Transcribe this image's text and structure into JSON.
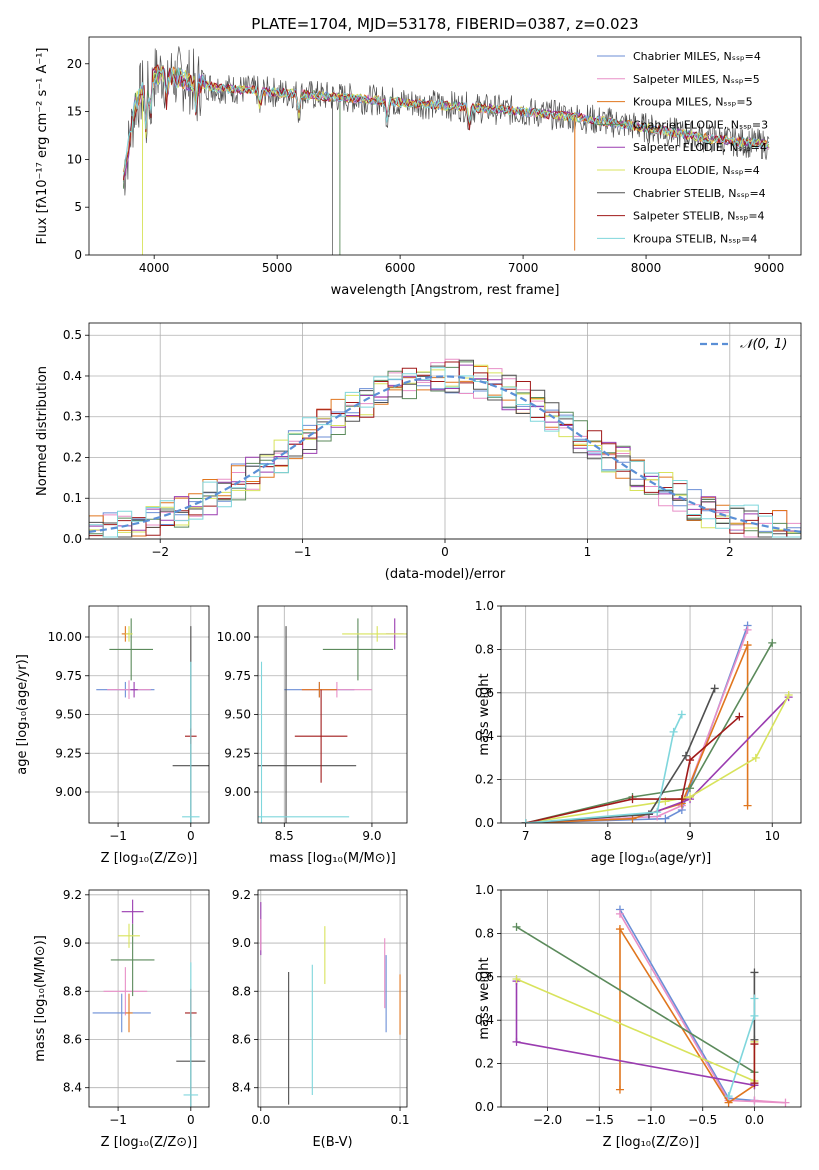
{
  "figure_title": "PLATE=1704, MJD=53178, FIBERID=0387, z=0.023",
  "colors": [
    "#6b8ed6",
    "#e88fc7",
    "#e0761e",
    "#5b8a5b",
    "#9a3cb0",
    "#d8e35c",
    "#505050",
    "#a01a1a",
    "#7fd6dc"
  ],
  "legend": [
    "Chabrier MILES, Nₛₛₚ=4",
    "Salpeter MILES, Nₛₛₚ=5",
    "Kroupa MILES, Nₛₛₚ=5",
    "Chabrier ELODIE, Nₛₛₚ=3",
    "Salpeter ELODIE, Nₛₛₚ=4",
    "Kroupa ELODIE, Nₛₛₚ=4",
    "Chabrier STELIB, Nₛₛₚ=4",
    "Salpeter STELIB, Nₛₛₚ=4",
    "Kroupa STELIB, Nₛₛₚ=4"
  ],
  "chart_data": [
    {
      "id": "spectrum",
      "type": "line",
      "xlabel": "wavelength [Angstrom, rest frame]",
      "ylabel": "Flux [fλ10⁻¹⁷ erg cm⁻² s⁻¹ A⁻¹]",
      "xlim": [
        3470,
        9260
      ],
      "ylim": [
        0,
        22.8
      ],
      "xticks": [
        4000,
        5000,
        6000,
        7000,
        8000,
        9000
      ],
      "yticks": [
        0,
        5,
        10,
        15,
        20
      ],
      "continuum": {
        "x": [
          3750,
          3850,
          3950,
          4050,
          4200,
          4500,
          5000,
          5500,
          6000,
          6500,
          7000,
          7500,
          8000,
          8500,
          9000
        ],
        "y": [
          8,
          16,
          18,
          19,
          18.5,
          17.5,
          17,
          16.5,
          16,
          15.5,
          15,
          14.3,
          13.3,
          12.2,
          11.5
        ]
      },
      "series_names_from_legend": true
    },
    {
      "id": "residual-histogram",
      "type": "line",
      "xlabel": "(data-model)/error",
      "ylabel": "Normed distribution",
      "xlim": [
        -2.5,
        2.5
      ],
      "ylim": [
        0,
        0.53
      ],
      "xticks": [
        -2,
        -1,
        0,
        1,
        2
      ],
      "yticks": [
        0.0,
        0.1,
        0.2,
        0.3,
        0.4,
        0.5
      ],
      "reference_curve": "𝒩(0, 1)",
      "bin_width": 0.1
    },
    {
      "id": "age-vs-Z",
      "type": "scatter",
      "xlabel": "Z [log₁₀(Z/Z⊙)]",
      "ylabel": "age  [log₁₀(age/yr)]",
      "xlim": [
        -1.4,
        0.25
      ],
      "ylim": [
        8.8,
        10.2
      ],
      "xticks": [
        -1,
        0
      ],
      "yticks": [
        9.0,
        9.25,
        9.5,
        9.75,
        10.0
      ],
      "points": [
        {
          "x": -0.9,
          "y": 9.66,
          "xerr": 0.4,
          "yerr": 0.05
        },
        {
          "x": -0.85,
          "y": 9.66,
          "xerr": 0.3,
          "yerr": 0.06
        },
        {
          "x": -0.9,
          "y": 10.02,
          "xerr": 0.05,
          "yerr": 0.05
        },
        {
          "x": -0.82,
          "y": 9.92,
          "xerr": 0.3,
          "yerr": 0.2
        },
        {
          "x": -0.78,
          "y": 9.66,
          "xerr": 0.05,
          "yerr": 0.05
        },
        {
          "x": -0.85,
          "y": 10.02,
          "xerr": 0.05,
          "yerr": 0.05
        },
        {
          "x": 0.0,
          "y": 9.17,
          "xerr": 0.25,
          "yerr": 0.9
        },
        {
          "x": 0.0,
          "y": 9.36,
          "xerr": 0.08,
          "yerr": 0.05
        },
        {
          "x": 0.0,
          "y": 8.84,
          "xerr": 0.12,
          "yerr": 1.0
        }
      ]
    },
    {
      "id": "age-vs-mass",
      "type": "scatter",
      "xlabel": "mass [log₁₀(M/M⊙)]",
      "ylabel": "",
      "xlim": [
        8.35,
        9.2
      ],
      "ylim": [
        8.8,
        10.2
      ],
      "xticks": [
        8.5,
        9.0
      ],
      "yticks": [
        9.0,
        9.25,
        9.5,
        9.75,
        10.0
      ],
      "points": [
        {
          "x": 8.7,
          "y": 9.66,
          "xerr": 0.2,
          "yerr": 0.05
        },
        {
          "x": 8.8,
          "y": 9.66,
          "xerr": 0.2,
          "yerr": 0.05
        },
        {
          "x": 8.7,
          "y": 9.66,
          "xerr": 0.1,
          "yerr": 0.05
        },
        {
          "x": 8.92,
          "y": 9.92,
          "xerr": 0.2,
          "yerr": 0.2
        },
        {
          "x": 9.13,
          "y": 10.02,
          "xerr": 0.05,
          "yerr": 0.1
        },
        {
          "x": 9.03,
          "y": 10.02,
          "xerr": 0.2,
          "yerr": 0.05
        },
        {
          "x": 8.51,
          "y": 9.17,
          "xerr": 0.4,
          "yerr": 0.9
        },
        {
          "x": 8.71,
          "y": 9.36,
          "xerr": 0.15,
          "yerr": 0.3
        },
        {
          "x": 8.37,
          "y": 8.84,
          "xerr": 0.5,
          "yerr": 1.0
        }
      ]
    },
    {
      "id": "mass-weight-vs-age",
      "type": "line",
      "xlabel": "age  [log₁₀(age/yr)]",
      "ylabel": "mass weight",
      "xlim": [
        6.7,
        10.35
      ],
      "ylim": [
        0,
        1.0
      ],
      "xticks": [
        7,
        8,
        9,
        10
      ],
      "yticks": [
        0.0,
        0.2,
        0.4,
        0.6,
        0.8,
        1.0
      ],
      "series": [
        {
          "x": [
            7.0,
            8.7,
            8.9,
            9.7
          ],
          "y": [
            0.0,
            0.02,
            0.06,
            0.91
          ]
        },
        {
          "x": [
            7.0,
            8.6,
            8.9,
            9.7
          ],
          "y": [
            0.0,
            0.03,
            0.08,
            0.89
          ]
        },
        {
          "x": [
            7.0,
            8.3,
            8.9,
            9.7,
            9.7
          ],
          "y": [
            0.0,
            0.02,
            0.09,
            0.82,
            0.08
          ]
        },
        {
          "x": [
            7.0,
            8.3,
            9.0,
            10.0
          ],
          "y": [
            0.0,
            0.12,
            0.16,
            0.83
          ]
        },
        {
          "x": [
            7.0,
            8.5,
            9.0,
            10.2
          ],
          "y": [
            0.0,
            0.04,
            0.11,
            0.58
          ]
        },
        {
          "x": [
            7.0,
            8.7,
            9.0,
            9.8,
            10.2
          ],
          "y": [
            0.0,
            0.1,
            0.12,
            0.3,
            0.59
          ]
        },
        {
          "x": [
            7.0,
            8.5,
            8.95,
            9.3
          ],
          "y": [
            0.0,
            0.04,
            0.31,
            0.62
          ]
        },
        {
          "x": [
            7.0,
            8.3,
            8.9,
            9.0,
            9.6
          ],
          "y": [
            0.0,
            0.11,
            0.11,
            0.29,
            0.49
          ]
        },
        {
          "x": [
            7.0,
            8.6,
            8.8,
            8.9
          ],
          "y": [
            0.0,
            0.05,
            0.42,
            0.5
          ]
        }
      ]
    },
    {
      "id": "mass-vs-Z",
      "type": "scatter",
      "xlabel": "Z [log₁₀(Z/Z⊙)]",
      "ylabel": "mass [log₁₀(M/M⊙)]",
      "xlim": [
        -1.4,
        0.25
      ],
      "ylim": [
        8.32,
        9.22
      ],
      "xticks": [
        -1,
        0
      ],
      "yticks": [
        8.4,
        8.6,
        8.8,
        9.0,
        9.2
      ],
      "points": [
        {
          "x": -0.95,
          "y": 8.71,
          "xerr": 0.4,
          "yerr": 0.08
        },
        {
          "x": -0.9,
          "y": 8.8,
          "xerr": 0.3,
          "yerr": 0.1
        },
        {
          "x": -0.85,
          "y": 8.71,
          "xerr": 0.05,
          "yerr": 0.08
        },
        {
          "x": -0.8,
          "y": 8.93,
          "xerr": 0.3,
          "yerr": 0.15
        },
        {
          "x": -0.8,
          "y": 9.13,
          "xerr": 0.15,
          "yerr": 0.05
        },
        {
          "x": -0.85,
          "y": 9.03,
          "xerr": 0.15,
          "yerr": 0.05
        },
        {
          "x": 0.0,
          "y": 8.51,
          "xerr": 0.2,
          "yerr": 0.2
        },
        {
          "x": 0.0,
          "y": 8.71,
          "xerr": 0.08,
          "yerr": 0.1
        },
        {
          "x": 0.0,
          "y": 8.37,
          "xerr": 0.1,
          "yerr": 0.55
        }
      ]
    },
    {
      "id": "mass-vs-ebv",
      "type": "scatter",
      "xlabel": "E(B-V)",
      "ylabel": "",
      "xlim": [
        -0.002,
        0.105
      ],
      "ylim": [
        8.32,
        9.22
      ],
      "xticks": [
        0.0,
        0.1
      ],
      "yticks": [
        8.4,
        8.6,
        8.8,
        9.0,
        9.2
      ],
      "segments": [
        {
          "x": 0.0,
          "ylo": 8.95,
          "yhi": 9.17
        },
        {
          "x": 0.0,
          "ylo": 8.97,
          "yhi": 9.1
        },
        {
          "x": 0.02,
          "ylo": 8.33,
          "yhi": 8.88
        },
        {
          "x": 0.037,
          "ylo": 8.37,
          "yhi": 8.91
        },
        {
          "x": 0.046,
          "ylo": 8.83,
          "yhi": 9.07
        },
        {
          "x": 0.089,
          "ylo": 8.73,
          "yhi": 9.02
        },
        {
          "x": 0.09,
          "ylo": 8.63,
          "yhi": 8.95
        },
        {
          "x": 0.1,
          "ylo": 8.62,
          "yhi": 8.87
        }
      ]
    },
    {
      "id": "mass-weight-vs-Z",
      "type": "line",
      "xlabel": "Z [log₁₀(Z/Z⊙)]",
      "ylabel": "mass weight",
      "xlim": [
        -2.45,
        0.45
      ],
      "ylim": [
        0,
        1.0
      ],
      "xticks": [
        -2.0,
        -1.5,
        -1.0,
        -0.5,
        0.0
      ],
      "yticks": [
        0.0,
        0.2,
        0.4,
        0.6,
        0.8,
        1.0
      ],
      "series": [
        {
          "x": [
            -1.3,
            -0.25,
            0.0
          ],
          "y": [
            0.91,
            0.04,
            0.03
          ]
        },
        {
          "x": [
            -1.3,
            -0.25,
            0.3,
            0.0
          ],
          "y": [
            0.89,
            0.03,
            0.02,
            0.03
          ]
        },
        {
          "x": [
            -1.3,
            -1.3,
            -0.25,
            0.0
          ],
          "y": [
            0.08,
            0.82,
            0.02,
            0.1
          ]
        },
        {
          "x": [
            -2.3,
            0.0
          ],
          "y": [
            0.83,
            0.16
          ]
        },
        {
          "x": [
            -2.3,
            -2.3,
            0.0,
            0.0
          ],
          "y": [
            0.58,
            0.3,
            0.1,
            0.11
          ]
        },
        {
          "x": [
            -2.3,
            0.0,
            0.0
          ],
          "y": [
            0.59,
            0.12,
            0.3
          ]
        },
        {
          "x": [
            0.0,
            0.0
          ],
          "y": [
            0.31,
            0.62
          ]
        },
        {
          "x": [
            0.0,
            0.0
          ],
          "y": [
            0.11,
            0.29
          ]
        },
        {
          "x": [
            -0.25,
            0.0,
            0.0
          ],
          "y": [
            0.05,
            0.42,
            0.5
          ]
        }
      ]
    }
  ]
}
